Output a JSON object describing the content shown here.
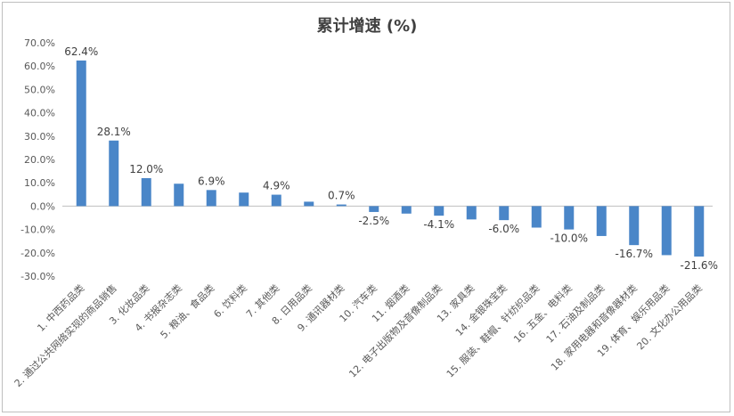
{
  "chart_data": {
    "type": "bar",
    "title": "累计增速 (%)",
    "xlabel": "",
    "ylabel": "",
    "ylim": [
      -30,
      70
    ],
    "yticks": [
      "70.0%",
      "60.0%",
      "50.0%",
      "40.0%",
      "30.0%",
      "20.0%",
      "10.0%",
      "0.0%",
      "-10.0%",
      "-20.0%",
      "-30.0%"
    ],
    "grid": false,
    "legend": "none",
    "bar_color": "#4a86c8",
    "categories": [
      "1. 中西药品类",
      "2. 通过公共网络实现的商品销售",
      "3. 化妆品类",
      "4. 书报杂志类",
      "5. 粮油、食品类",
      "6. 饮料类",
      "7. 其他类",
      "8. 日用品类",
      "9. 通讯器材类",
      "10. 汽车类",
      "11. 烟酒类",
      "12. 电子出版物及音像制品类",
      "13. 家具类",
      "14. 金银珠宝类",
      "15. 服装、鞋帽、针纺织品类",
      "16. 五金、电料类",
      "17. 石油及制品类",
      "18. 家用电器和音像器材类",
      "19. 体育、娱乐用品类",
      "20. 文化办公用品类"
    ],
    "values": [
      62.4,
      28.1,
      12.0,
      9.6,
      6.9,
      5.8,
      4.9,
      1.9,
      0.7,
      -2.5,
      -3.2,
      -4.1,
      -5.7,
      -6.0,
      -9.2,
      -10.0,
      -12.8,
      -16.7,
      -21.0,
      -21.6
    ],
    "data_labels": [
      "62.4%",
      "28.1%",
      "12.0%",
      "",
      "6.9%",
      "",
      "4.9%",
      "",
      "0.7%",
      "-2.5%",
      "",
      "-4.1%",
      "",
      "-6.0%",
      "",
      "-10.0%",
      "",
      "-16.7%",
      "",
      "-21.6%"
    ]
  }
}
